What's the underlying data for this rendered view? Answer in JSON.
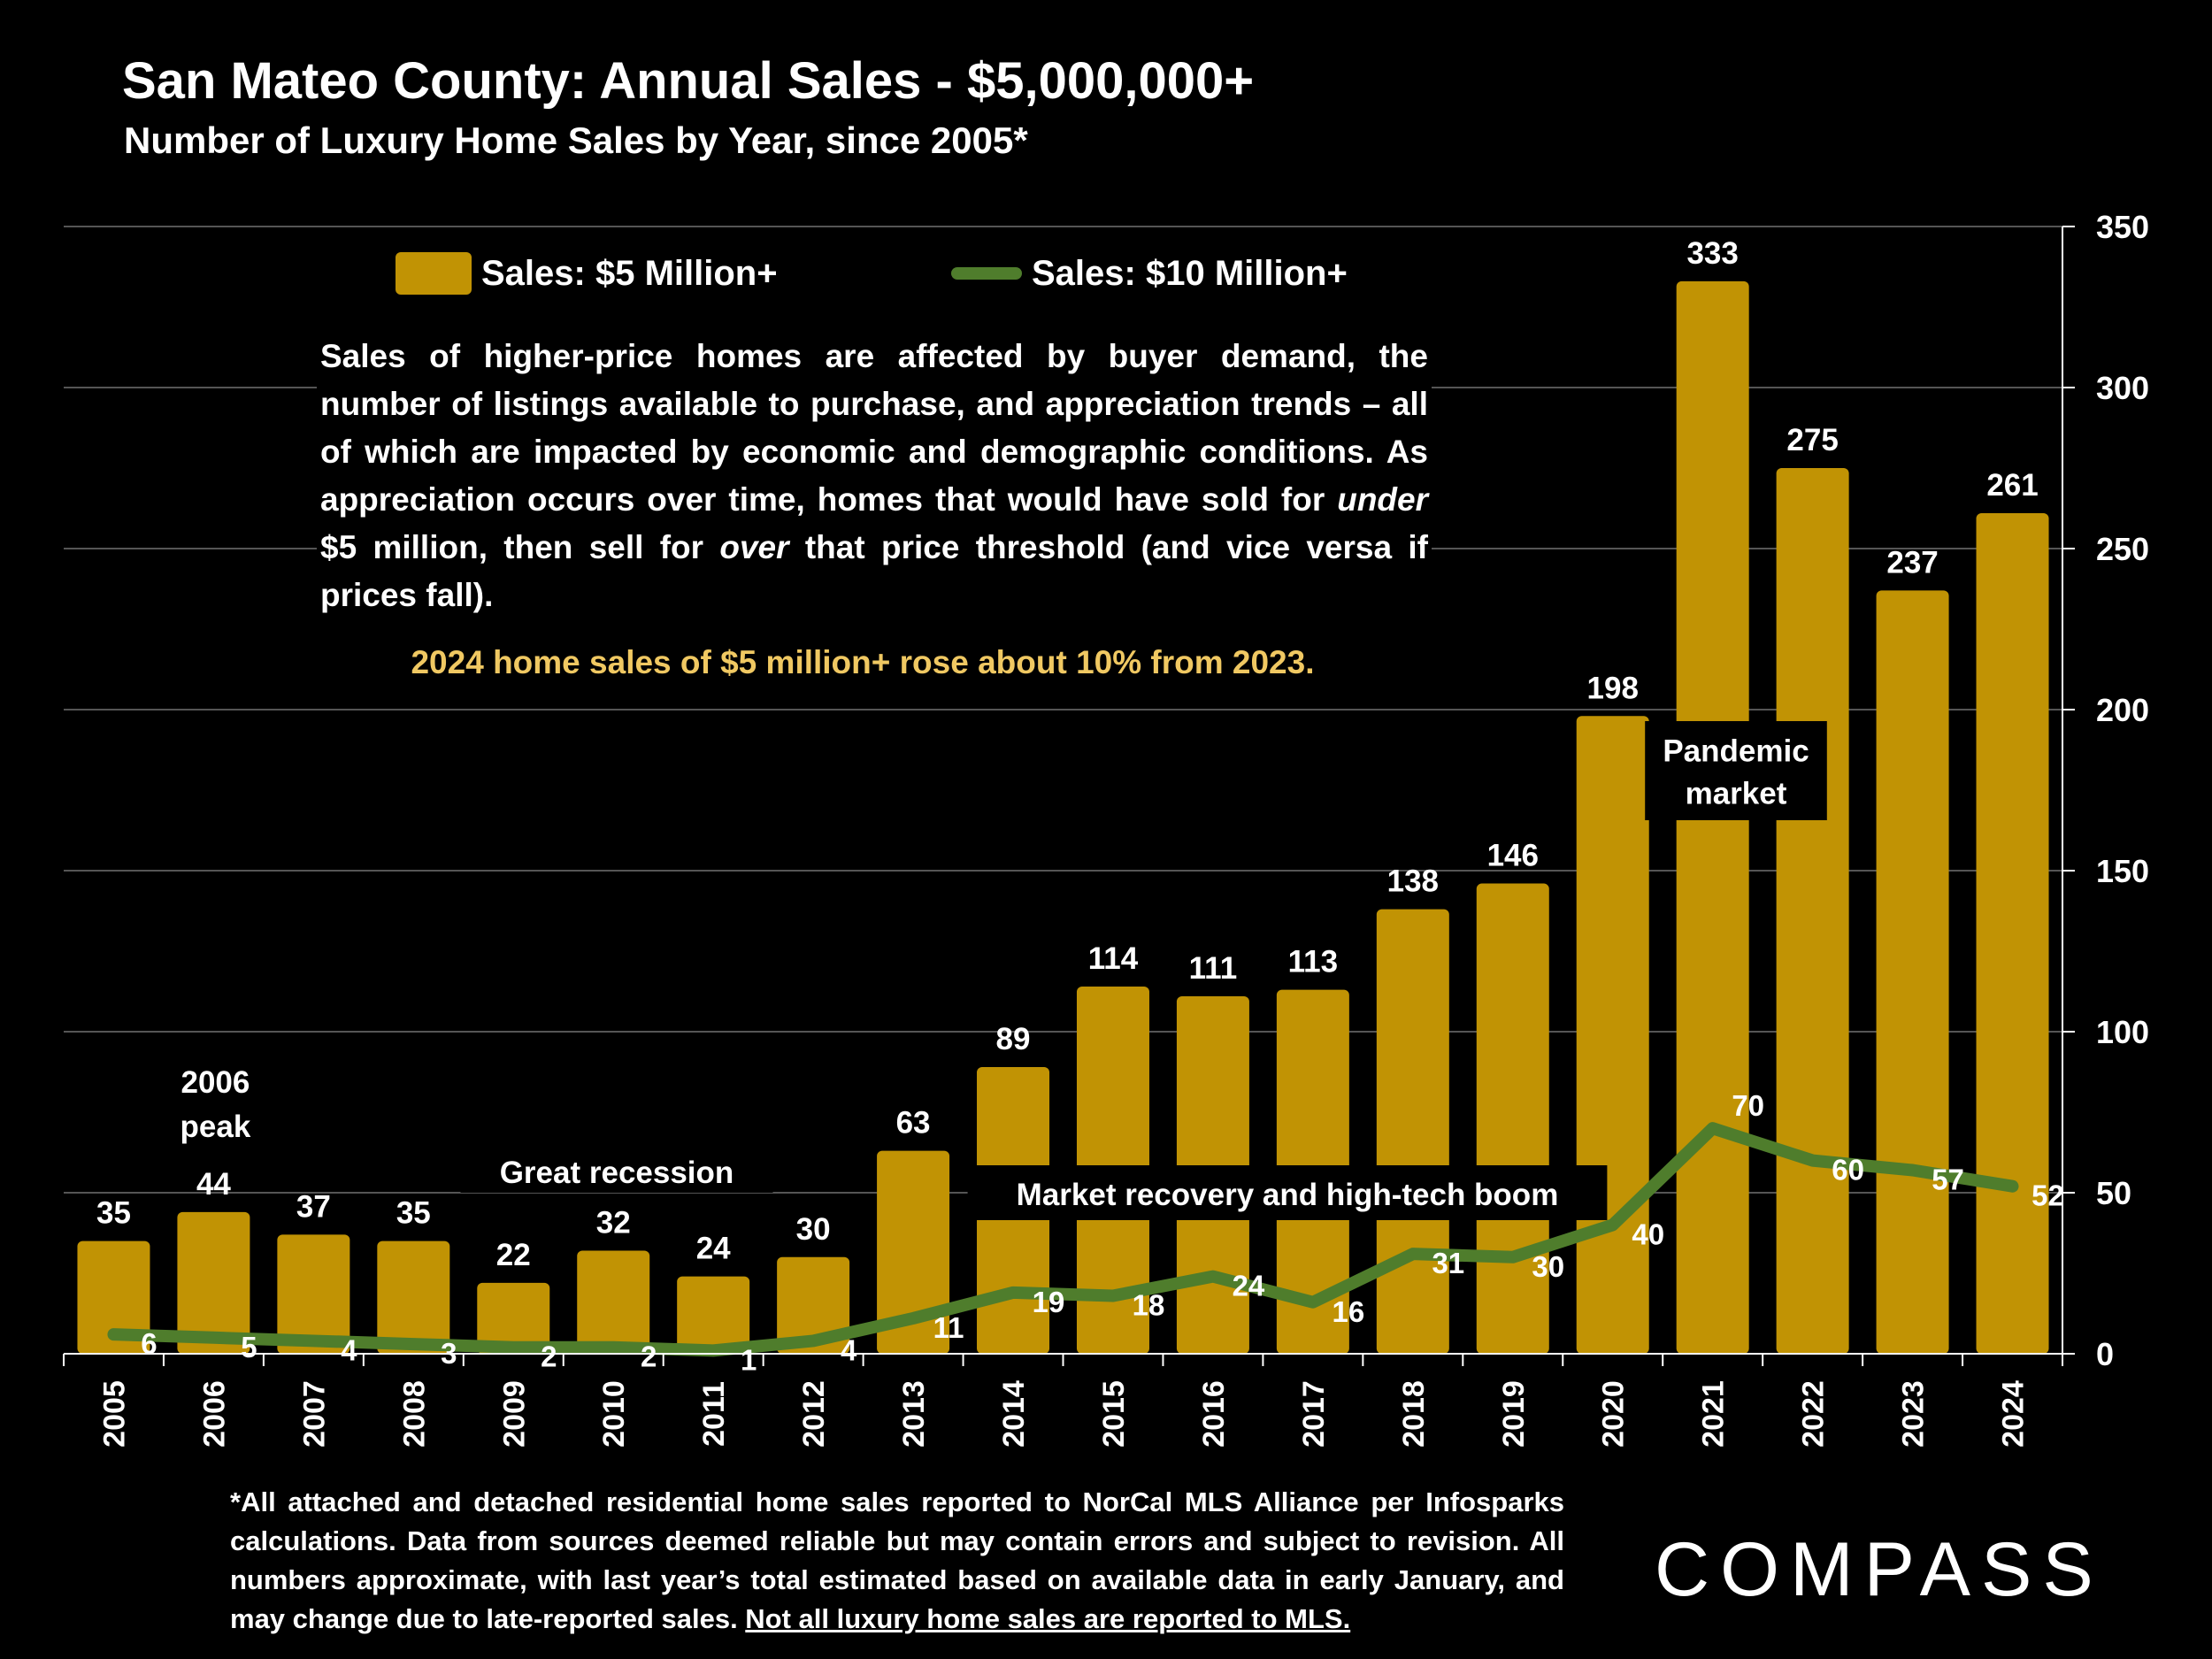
{
  "title": "San Mateo County:  Annual Sales - $5,000,000+",
  "subtitle": "Number of Luxury Home Sales by Year, since 2005*",
  "note": {
    "part1": "Sales of higher-price homes are affected by buyer demand, the number of listings available to purchase, and appreciation trends – all of which are impacted by economic and demographic conditions. As appreciation occurs over time, homes that would have sold for ",
    "em1": "under",
    "part2": " $5 million, then sell for ",
    "em2": "over",
    "part3": " that price threshold (and vice versa if prices fall)."
  },
  "highlight": "2024 home sales of $5 million+ rose about 10% from 2023.",
  "footnote": {
    "text": "*All attached and detached residential home sales reported to NorCal MLS Alliance per Infosparks calculations. Data from sources deemed reliable but may contain errors and subject to revision. All numbers approximate, with last year’s total estimated based on available data in early January, and may change due to late-reported sales. ",
    "underlined": "Not all luxury home sales are reported to MLS."
  },
  "logo": "COMPASS",
  "colors": {
    "bar": "#c19304",
    "line": "#4f7d2c",
    "highlight": "#f0c862",
    "background": "#000000"
  },
  "chart_data": {
    "type": "bar",
    "categories": [
      "2005",
      "2006",
      "2007",
      "2008",
      "2009",
      "2010",
      "2011",
      "2012",
      "2013",
      "2014",
      "2015",
      "2016",
      "2017",
      "2018",
      "2019",
      "2020",
      "2021",
      "2022",
      "2023",
      "2024"
    ],
    "series": [
      {
        "name": "Sales:  $5 Million+",
        "type": "bar",
        "values": [
          35,
          44,
          37,
          35,
          22,
          32,
          24,
          30,
          63,
          89,
          114,
          111,
          113,
          138,
          146,
          198,
          333,
          275,
          237,
          261
        ]
      },
      {
        "name": "Sales: $10 Million+",
        "type": "line",
        "values": [
          6,
          5,
          4,
          3,
          2,
          2,
          1,
          4,
          11,
          19,
          18,
          24,
          16,
          31,
          30,
          40,
          70,
          60,
          57,
          52
        ]
      }
    ],
    "yaxis": {
      "position": "right",
      "ylim": [
        0,
        350
      ],
      "ticks": [
        0,
        50,
        100,
        150,
        200,
        250,
        300,
        350
      ]
    },
    "grid": true,
    "legend": "top-left",
    "annotations": [
      {
        "text": "2006\npeak",
        "anchor_category": "2006"
      },
      {
        "text": "Great recession",
        "anchor_category": "2010"
      },
      {
        "text": "Market recovery and high-tech boom",
        "anchor_category": "2016"
      },
      {
        "text": "Pandemic\nmarket",
        "anchor_category": "2021"
      }
    ]
  }
}
